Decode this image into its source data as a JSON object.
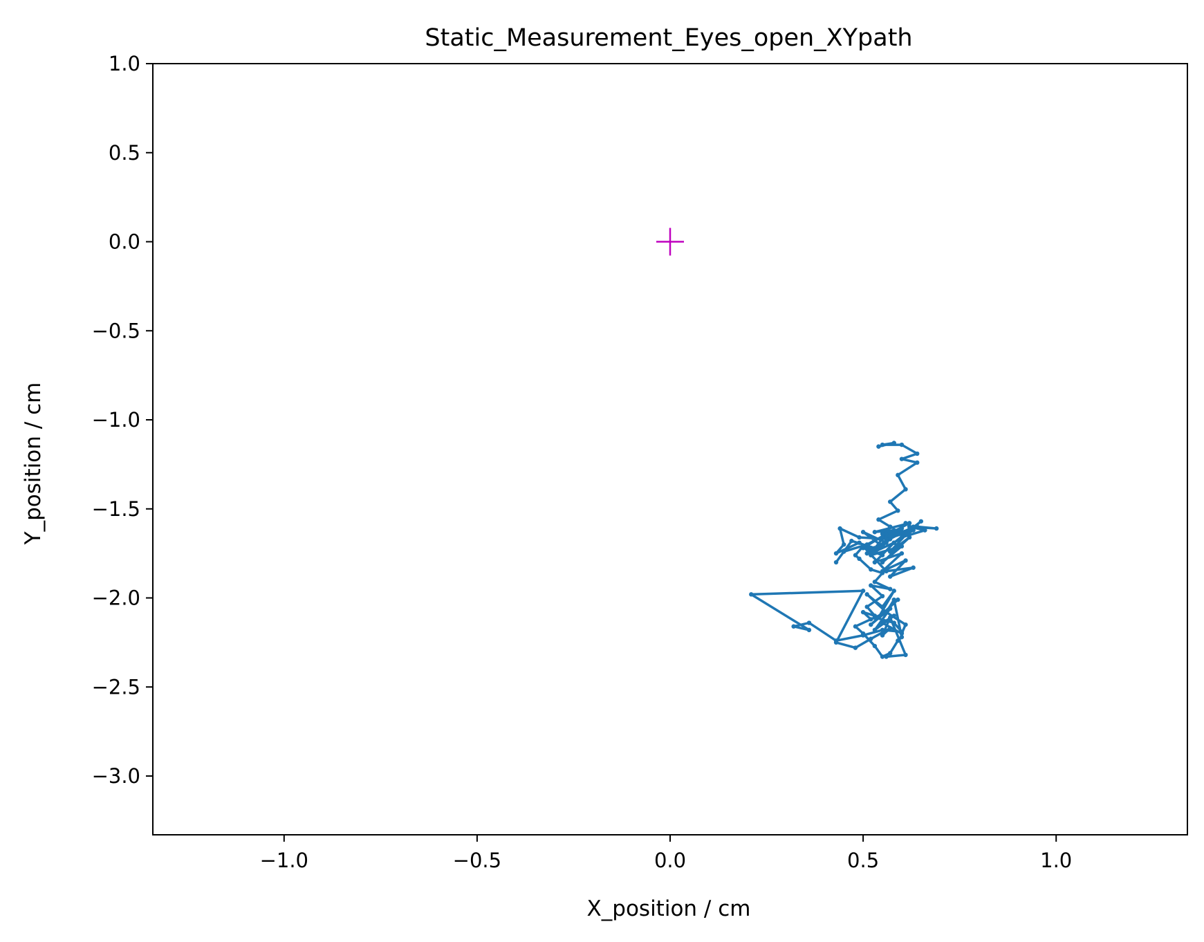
{
  "chart_data": {
    "type": "line",
    "title": "Static_Measurement_Eyes_open_XYpath",
    "xlabel": "X_position / cm",
    "ylabel": "Y_position / cm",
    "xlim": [
      -1.34,
      1.34
    ],
    "ylim": [
      -3.33,
      1.0
    ],
    "xticks": [
      -1.0,
      -0.5,
      0.0,
      0.5,
      1.0
    ],
    "xtick_labels": [
      "−1.0",
      "−0.5",
      "0.0",
      "0.5",
      "1.0"
    ],
    "yticks": [
      1.0,
      0.5,
      0.0,
      -0.5,
      -1.0,
      -1.5,
      -2.0,
      -2.5,
      -3.0
    ],
    "ytick_labels": [
      "1.0",
      "0.5",
      "0.0",
      "−0.5",
      "−1.0",
      "−1.5",
      "−2.0",
      "−2.5",
      "−3.0"
    ],
    "grid": false,
    "series": [
      {
        "color": "#1f77b4",
        "marker": "dot",
        "x": [
          0.54,
          0.58,
          0.55,
          0.6,
          0.64,
          0.6,
          0.64,
          0.59,
          0.61,
          0.57,
          0.59,
          0.54,
          0.57,
          0.55,
          0.6,
          0.56,
          0.63,
          0.58,
          0.65,
          0.6,
          0.66,
          0.62,
          0.69,
          0.64,
          0.6,
          0.55,
          0.62,
          0.53,
          0.58,
          0.51,
          0.45,
          0.43,
          0.47,
          0.53,
          0.59,
          0.51,
          0.56,
          0.5,
          0.55,
          0.61,
          0.56,
          0.63,
          0.57,
          0.62,
          0.55,
          0.6,
          0.52,
          0.57,
          0.49,
          0.44,
          0.45,
          0.43,
          0.49,
          0.55,
          0.5,
          0.56,
          0.52,
          0.58,
          0.53,
          0.6,
          0.55,
          0.61,
          0.57,
          0.63,
          0.56,
          0.5,
          0.48,
          0.49,
          0.52,
          0.55,
          0.53,
          0.57,
          0.52,
          0.55,
          0.51,
          0.53,
          0.5,
          0.52,
          0.56,
          0.51,
          0.55,
          0.58,
          0.54,
          0.59,
          0.52,
          0.57,
          0.53,
          0.58,
          0.55,
          0.6,
          0.61,
          0.56,
          0.58,
          0.6,
          0.59,
          0.57,
          0.55,
          0.53,
          0.5,
          0.48,
          0.53,
          0.58,
          0.6,
          0.55,
          0.5,
          0.43,
          0.36,
          0.32,
          0.36,
          0.21,
          0.5,
          0.43,
          0.48,
          0.52,
          0.57,
          0.55,
          0.57,
          0.61,
          0.56
        ],
        "y": [
          -1.15,
          -1.13,
          -1.14,
          -1.14,
          -1.19,
          -1.22,
          -1.24,
          -1.31,
          -1.39,
          -1.46,
          -1.51,
          -1.56,
          -1.6,
          -1.64,
          -1.61,
          -1.67,
          -1.62,
          -1.69,
          -1.57,
          -1.66,
          -1.62,
          -1.6,
          -1.61,
          -1.6,
          -1.63,
          -1.66,
          -1.58,
          -1.63,
          -1.62,
          -1.7,
          -1.74,
          -1.8,
          -1.68,
          -1.72,
          -1.64,
          -1.75,
          -1.69,
          -1.63,
          -1.71,
          -1.58,
          -1.68,
          -1.6,
          -1.74,
          -1.66,
          -1.8,
          -1.71,
          -1.76,
          -1.67,
          -1.66,
          -1.61,
          -1.7,
          -1.75,
          -1.69,
          -1.76,
          -1.72,
          -1.64,
          -1.75,
          -1.69,
          -1.8,
          -1.75,
          -1.85,
          -1.79,
          -1.88,
          -1.83,
          -1.85,
          -1.71,
          -1.76,
          -1.78,
          -1.84,
          -1.86,
          -1.91,
          -1.95,
          -1.93,
          -1.99,
          -2.05,
          -2.1,
          -2.08,
          -2.12,
          -2.08,
          -1.98,
          -2.05,
          -1.96,
          -2.11,
          -2.01,
          -2.15,
          -2.06,
          -2.18,
          -2.1,
          -2.14,
          -2.2,
          -2.15,
          -2.08,
          -2.01,
          -2.22,
          -2.24,
          -2.31,
          -2.33,
          -2.27,
          -2.2,
          -2.16,
          -2.11,
          -2.14,
          -2.19,
          -2.18,
          -2.21,
          -2.24,
          -2.14,
          -2.16,
          -2.18,
          -1.98,
          -1.96,
          -2.25,
          -2.28,
          -2.23,
          -2.17,
          -2.21,
          -2.11,
          -2.32,
          -2.33
        ]
      },
      {
        "color": "#bf00bf",
        "marker": "plus",
        "x": [
          0.0
        ],
        "y": [
          0.0
        ]
      }
    ]
  }
}
